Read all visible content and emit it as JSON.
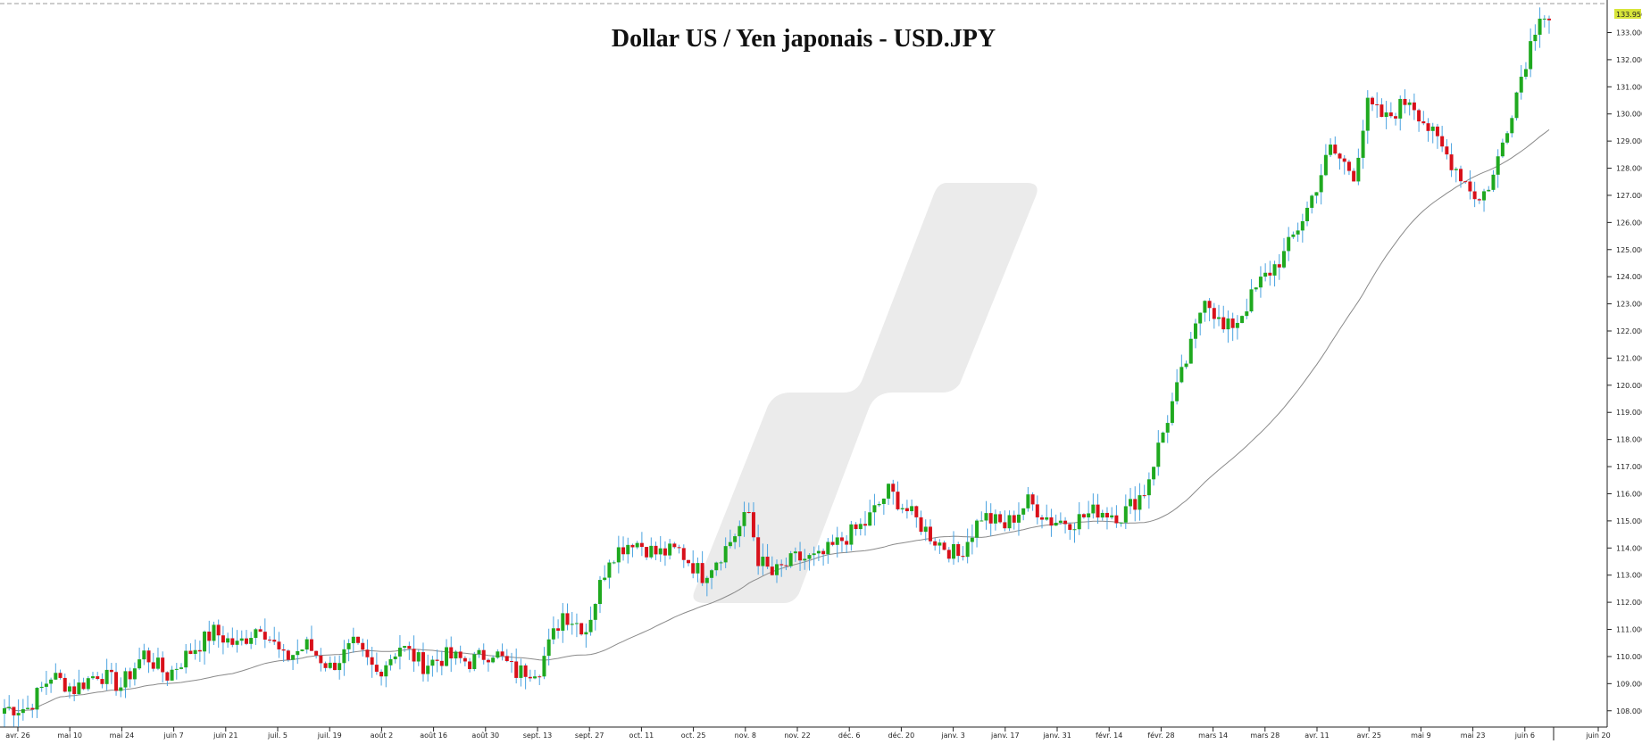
{
  "chart_data": {
    "type": "candlestick",
    "title": "Dollar US / Yen japonais - USD.JPY",
    "xlabel": "",
    "ylabel": "",
    "ylim": [
      107.4,
      134.2
    ],
    "y_ticks": [
      "108.000",
      "109.000",
      "110.000",
      "111.000",
      "112.000",
      "113.000",
      "114.000",
      "115.000",
      "116.000",
      "117.000",
      "118.000",
      "119.000",
      "120.000",
      "121.000",
      "122.000",
      "123.000",
      "124.000",
      "125.000",
      "126.000",
      "127.000",
      "128.000",
      "129.000",
      "130.000",
      "131.000",
      "132.000",
      "133.000"
    ],
    "x_ticks": [
      "avr. 26",
      "mai 10",
      "mai 24",
      "juin 7",
      "juin 21",
      "juil. 5",
      "juil. 19",
      "août 2",
      "août 16",
      "août 30",
      "sept. 13",
      "sept. 27",
      "oct. 11",
      "oct. 25",
      "nov. 8",
      "nov. 22",
      "déc. 6",
      "déc. 20",
      "janv. 3",
      "janv. 17",
      "janv. 31",
      "févr. 14",
      "févr. 28",
      "mars 14",
      "mars 28",
      "avr. 11",
      "avr. 25",
      "mai 9",
      "mai 23",
      "juin 6",
      "juin 20"
    ],
    "last_price_label": "133.956",
    "grid": false,
    "up_color": "#1fa91f",
    "down_color": "#d8101a",
    "wick_color": "#4aa3e0",
    "ma_color": "#8a8a8a",
    "price_waypoints": [
      [
        0,
        108.1
      ],
      [
        5,
        108.1
      ],
      [
        10,
        109.3
      ],
      [
        15,
        108.8
      ],
      [
        20,
        109.4
      ],
      [
        25,
        108.9
      ],
      [
        30,
        110.1
      ],
      [
        35,
        109.3
      ],
      [
        40,
        110.2
      ],
      [
        45,
        110.9
      ],
      [
        50,
        110.4
      ],
      [
        55,
        111.2
      ],
      [
        60,
        109.9
      ],
      [
        65,
        110.4
      ],
      [
        70,
        109.6
      ],
      [
        75,
        110.4
      ],
      [
        80,
        109.4
      ],
      [
        85,
        110.4
      ],
      [
        90,
        109.7
      ],
      [
        95,
        110.0
      ],
      [
        100,
        109.8
      ],
      [
        105,
        110.2
      ],
      [
        110,
        109.4
      ],
      [
        115,
        109.6
      ],
      [
        120,
        111.6
      ],
      [
        125,
        111.0
      ],
      [
        130,
        113.7
      ],
      [
        135,
        114.3
      ],
      [
        140,
        113.8
      ],
      [
        145,
        113.9
      ],
      [
        150,
        113.0
      ],
      [
        155,
        114.0
      ],
      [
        160,
        115.3
      ],
      [
        162,
        113.6
      ],
      [
        165,
        113.0
      ],
      [
        170,
        113.6
      ],
      [
        175,
        113.6
      ],
      [
        180,
        114.3
      ],
      [
        185,
        114.9
      ],
      [
        190,
        116.1
      ],
      [
        195,
        115.2
      ],
      [
        200,
        114.3
      ],
      [
        205,
        113.7
      ],
      [
        210,
        115.2
      ],
      [
        215,
        114.8
      ],
      [
        220,
        115.7
      ],
      [
        225,
        115.0
      ],
      [
        230,
        115.0
      ],
      [
        235,
        115.4
      ],
      [
        240,
        115.2
      ],
      [
        245,
        116.1
      ],
      [
        250,
        118.8
      ],
      [
        255,
        121.4
      ],
      [
        258,
        123.4
      ],
      [
        262,
        122.0
      ],
      [
        265,
        122.4
      ],
      [
        270,
        123.8
      ],
      [
        275,
        124.8
      ],
      [
        280,
        126.5
      ],
      [
        285,
        128.7
      ],
      [
        290,
        127.8
      ],
      [
        293,
        130.3
      ],
      [
        297,
        129.8
      ],
      [
        302,
        130.6
      ],
      [
        307,
        129.2
      ],
      [
        312,
        128.0
      ],
      [
        317,
        126.8
      ],
      [
        320,
        127.7
      ],
      [
        324,
        130.2
      ],
      [
        328,
        132.6
      ],
      [
        330,
        133.8
      ],
      [
        332,
        133.5
      ]
    ]
  }
}
